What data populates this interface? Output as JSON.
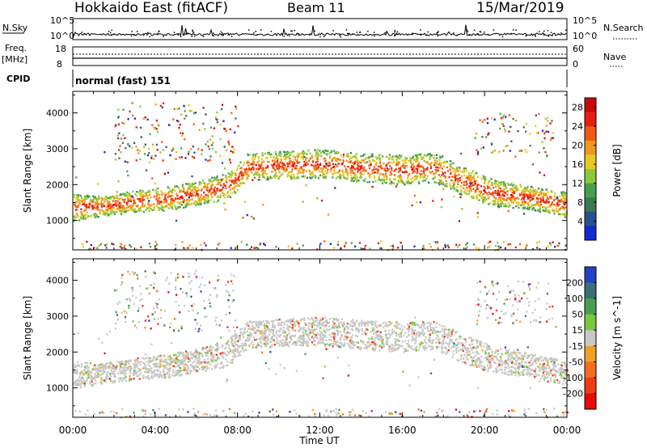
{
  "header": {
    "station": "Hokkaido East (fitACF)",
    "beam": "Beam 11",
    "date": "15/Mar/2019"
  },
  "noise_panel": {
    "left_label": "N.Sky",
    "right_label": "N.Search",
    "ticks_left": [
      "10^5",
      "10^0"
    ],
    "ticks_right": [
      "10^5",
      "10^0"
    ]
  },
  "freq_panel": {
    "left_label_1": "Freq.",
    "left_label_2": "[MHz]",
    "right_label": "Nave",
    "ticks_left": [
      "18",
      "8"
    ],
    "ticks_right": [
      "60",
      "0"
    ]
  },
  "cpid": {
    "label": "CPID",
    "value": "normal (fast) 151"
  },
  "colors": {
    "power": [
      "#1428d2",
      "#28508c",
      "#3c7850",
      "#46a050",
      "#8cc83c",
      "#e6c81e",
      "#f0961e",
      "#f05a14",
      "#e61e14",
      "#c80a0a"
    ],
    "velocity": [
      "#e60a0a",
      "#f03c14",
      "#f06e1e",
      "#f0a028",
      "#c8c8c8",
      "#78c83c",
      "#46a050",
      "#3c6e78",
      "#2840c8"
    ],
    "gray": "#c8c8c8"
  },
  "chart_data": [
    {
      "type": "heatmap",
      "title": "",
      "xlabel": "Time UT",
      "ylabel": "Slant Range [km]",
      "x_ticks": [
        "00:00",
        "04:00",
        "08:00",
        "12:00",
        "16:00",
        "20:00",
        "00:00"
      ],
      "xlim_hours": [
        0,
        24
      ],
      "y_ticks": [
        "1000",
        "2000",
        "3000",
        "4000"
      ],
      "ylim": [
        180,
        4600
      ],
      "colorbar": {
        "label": "Power [dB]",
        "ticks": [
          "4",
          "8",
          "12",
          "16",
          "20",
          "24",
          "28"
        ],
        "range": [
          0,
          30
        ]
      },
      "scatter_bands": [
        {
          "x": [
            0,
            1.5,
            3,
            4.5,
            6,
            7.5,
            8.5,
            12,
            14,
            16,
            17.5,
            19,
            20.5,
            22,
            24
          ],
          "bottom": [
            1000,
            1150,
            1250,
            1300,
            1450,
            1600,
            2150,
            2200,
            2100,
            2000,
            2100,
            1700,
            1400,
            1350,
            1100
          ],
          "top": [
            1750,
            1700,
            1850,
            1950,
            2100,
            2350,
            2900,
            3000,
            2900,
            2850,
            2900,
            2500,
            2150,
            2000,
            1800
          ]
        }
      ]
    },
    {
      "type": "heatmap",
      "title": "",
      "xlabel": "Time UT",
      "ylabel": "Slant Range [km]",
      "x_ticks": [
        "00:00",
        "04:00",
        "08:00",
        "12:00",
        "16:00",
        "20:00",
        "00:00"
      ],
      "xlim_hours": [
        0,
        24
      ],
      "y_ticks": [
        "1000",
        "2000",
        "3000",
        "4000"
      ],
      "ylim": [
        180,
        4600
      ],
      "colorbar": {
        "label": "Velocity [m s^-1]",
        "ticks": [
          "-200",
          "-100",
          "-50",
          "-15",
          "15",
          "50",
          "100",
          "200"
        ],
        "range": [
          -250,
          250
        ]
      }
    }
  ]
}
